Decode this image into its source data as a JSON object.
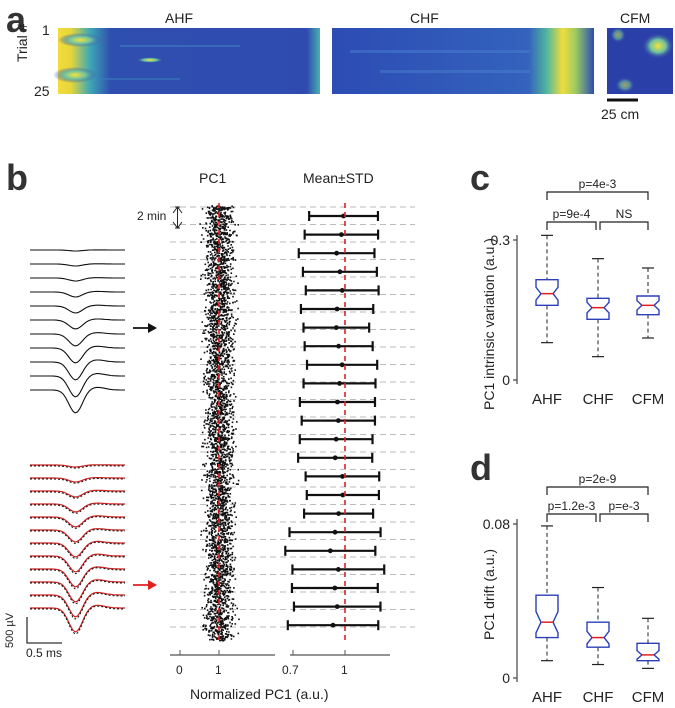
{
  "panels": {
    "a": {
      "letter": "a",
      "titles": [
        "AHF",
        "CHF",
        "CFM"
      ],
      "ylabel": "Trial #",
      "ytick_top": "1",
      "ytick_bottom": "25",
      "scalebar": "25 cm",
      "colors": {
        "bg": "#2b3fa8",
        "mid": "#2b8fb8",
        "hot": "#f5e23a"
      }
    },
    "b": {
      "letter": "b",
      "title_pc1": "PC1",
      "title_mean": "Mean±STD",
      "interval_label": "2 min",
      "xlabel": "Normalized PC1 (a.u.)",
      "xticks_left": [
        "0",
        "1"
      ],
      "xticks_right": [
        "0.7",
        "1"
      ],
      "scale_voltage": "500 µV",
      "scale_time": "0.5 ms",
      "colors": {
        "scatter": "#111111",
        "dashed": "#dd2222",
        "red_wave": "#cc2222",
        "arrow_red": "#e02020"
      }
    },
    "c": {
      "letter": "c",
      "chart_data": {
        "type": "box",
        "categories": [
          "AHF",
          "CHF",
          "CFM"
        ],
        "ylabel": "PC1 intrinsic variation  (a.u.)",
        "yticks": [
          "0",
          "0.3"
        ],
        "ylim": [
          0,
          0.3
        ],
        "boxes": [
          {
            "name": "AHF",
            "min": 0.08,
            "q1": 0.16,
            "median": 0.185,
            "q3": 0.215,
            "max": 0.31
          },
          {
            "name": "CHF",
            "min": 0.05,
            "q1": 0.13,
            "median": 0.155,
            "q3": 0.175,
            "max": 0.26
          },
          {
            "name": "CFM",
            "min": 0.09,
            "q1": 0.14,
            "median": 0.16,
            "q3": 0.18,
            "max": 0.24
          }
        ],
        "significance": [
          {
            "from": "AHF",
            "to": "CFM",
            "label": "p=4e-3"
          },
          {
            "from": "AHF",
            "to": "CHF",
            "label": "p=9e-4"
          },
          {
            "from": "CHF",
            "to": "CFM",
            "label": "NS"
          }
        ]
      }
    },
    "d": {
      "letter": "d",
      "chart_data": {
        "type": "box",
        "categories": [
          "AHF",
          "CHF",
          "CFM"
        ],
        "ylabel": "PC1 drift (a.u.)",
        "yticks": [
          "0",
          "0.08"
        ],
        "ylim": [
          0,
          0.08
        ],
        "boxes": [
          {
            "name": "AHF",
            "min": 0.009,
            "q1": 0.021,
            "median": 0.029,
            "q3": 0.043,
            "max": 0.079
          },
          {
            "name": "CHF",
            "min": 0.007,
            "q1": 0.016,
            "median": 0.021,
            "q3": 0.029,
            "max": 0.047
          },
          {
            "name": "CFM",
            "min": 0.005,
            "q1": 0.009,
            "median": 0.012,
            "q3": 0.018,
            "max": 0.031
          }
        ],
        "significance": [
          {
            "from": "AHF",
            "to": "CFM",
            "label": "p=2e-9"
          },
          {
            "from": "AHF",
            "to": "CHF",
            "label": "p=1.2e-3"
          },
          {
            "from": "CHF",
            "to": "CFM",
            "label": "p=e-3"
          }
        ]
      }
    }
  }
}
